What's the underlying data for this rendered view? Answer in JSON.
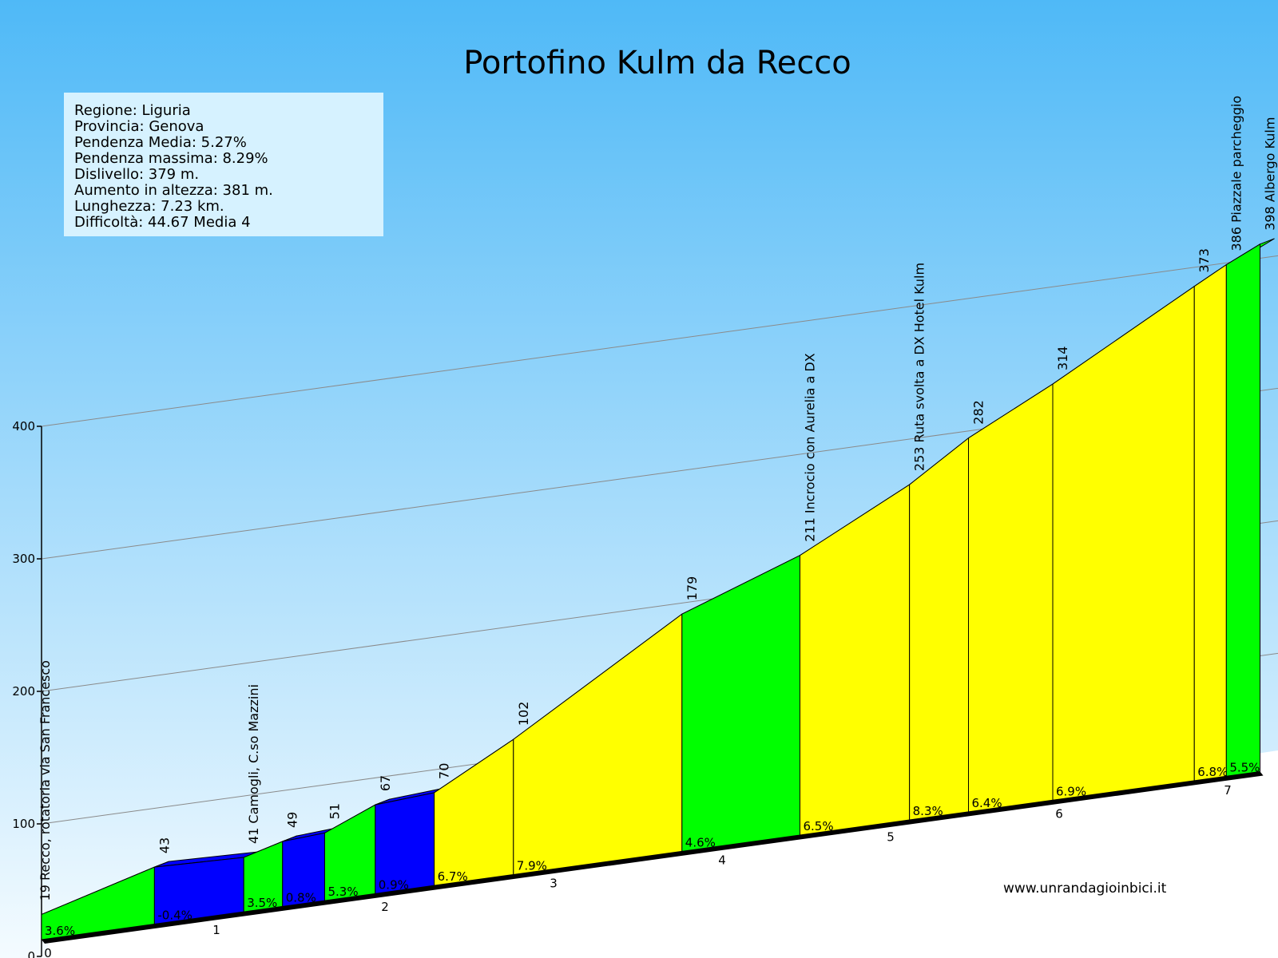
{
  "colors": {
    "sky_top": "#4fb9f7",
    "sky_bottom": "#f4fbff",
    "easy": "#00ff00",
    "medium": "#ffff00",
    "descent": "#0000ff",
    "side": "#000000"
  },
  "chart_data": {
    "type": "area",
    "title": "Portofino Kulm da Recco",
    "info": [
      "Regione: Liguria",
      "Provincia: Genova",
      "Pendenza Media: 5.27%",
      "Pendenza massima: 8.29%",
      "Dislivello:   379 m.",
      "Aumento in altezza:   381 m.",
      "Lunghezza:  7.23 km.",
      "Difficoltà: 44.67 Media 4"
    ],
    "website": "www.unrandagioinbici.it",
    "ylim": [
      0,
      400
    ],
    "yticks": [
      "0",
      "100",
      "200",
      "300",
      "400"
    ],
    "xlim": [
      0,
      7.23
    ],
    "xticks": [
      "0",
      "1",
      "2",
      "3",
      "4",
      "5",
      "6",
      "7"
    ],
    "grid": true,
    "points": [
      {
        "km": 0.0,
        "alt": 19,
        "label": "19 Recco, rotatoria via San Francesco"
      },
      {
        "km": 0.67,
        "alt": 43,
        "label": "43"
      },
      {
        "km": 1.2,
        "alt": 41,
        "label": "41 Camogli, C.so Mazzini"
      },
      {
        "km": 1.43,
        "alt": 49,
        "label": "49"
      },
      {
        "km": 1.68,
        "alt": 51,
        "label": "51"
      },
      {
        "km": 1.98,
        "alt": 67,
        "label": "67"
      },
      {
        "km": 2.33,
        "alt": 70,
        "label": "70"
      },
      {
        "km": 2.8,
        "alt": 102,
        "label": "102"
      },
      {
        "km": 3.8,
        "alt": 179,
        "label": "179"
      },
      {
        "km": 4.5,
        "alt": 211,
        "label": "211 Incrocio con Aurelia a DX"
      },
      {
        "km": 5.15,
        "alt": 253,
        "label": "253 Ruta svolta a DX Hotel Kulm"
      },
      {
        "km": 5.5,
        "alt": 282,
        "label": "282"
      },
      {
        "km": 6.0,
        "alt": 314,
        "label": "314"
      },
      {
        "km": 6.84,
        "alt": 373,
        "label": "373"
      },
      {
        "km": 7.03,
        "alt": 386,
        "label": "386 Piazzale parcheggio"
      },
      {
        "km": 7.23,
        "alt": 398,
        "label": "398 Albergo Kulm"
      }
    ],
    "segments": [
      {
        "grade": "3.6%",
        "difficulty": "easy"
      },
      {
        "grade": "-0.4%",
        "difficulty": "descent"
      },
      {
        "grade": "3.5%",
        "difficulty": "easy"
      },
      {
        "grade": "0.8%",
        "difficulty": "descent"
      },
      {
        "grade": "5.3%",
        "difficulty": "easy"
      },
      {
        "grade": "0.9%",
        "difficulty": "descent"
      },
      {
        "grade": "6.7%",
        "difficulty": "medium"
      },
      {
        "grade": "7.9%",
        "difficulty": "medium"
      },
      {
        "grade": "4.6%",
        "difficulty": "easy"
      },
      {
        "grade": "6.5%",
        "difficulty": "medium"
      },
      {
        "grade": "8.3%",
        "difficulty": "medium"
      },
      {
        "grade": "6.4%",
        "difficulty": "medium"
      },
      {
        "grade": "6.9%",
        "difficulty": "medium"
      },
      {
        "grade": "6.8%",
        "difficulty": "medium"
      },
      {
        "grade": "5.5%",
        "difficulty": "easy"
      }
    ]
  }
}
